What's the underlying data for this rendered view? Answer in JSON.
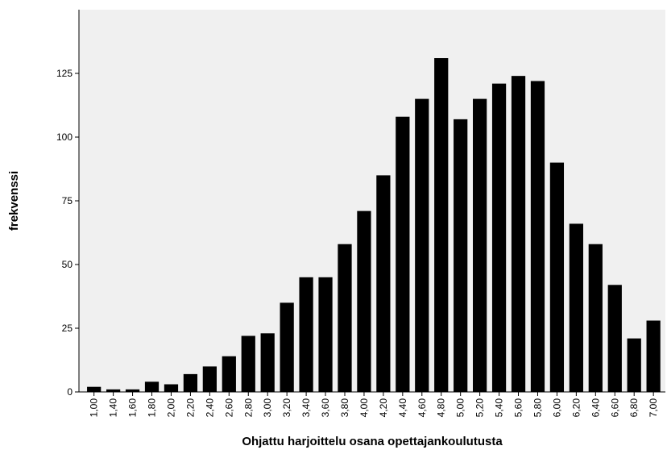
{
  "chart_data": {
    "type": "bar",
    "xlabel": "Ohjattu harjoittelu osana opettajankoulutusta",
    "ylabel": "frekvenssi",
    "ylim": [
      0,
      150
    ],
    "yticks": [
      0,
      25,
      50,
      75,
      100,
      125
    ],
    "grid": false,
    "background": "#f0f0f0",
    "bar_color": "#000000",
    "categories": [
      "1,00",
      "1,40",
      "1,60",
      "1,80",
      "2,00",
      "2,20",
      "2,40",
      "2,60",
      "2,80",
      "3,00",
      "3,20",
      "3,40",
      "3,60",
      "3,80",
      "4,00",
      "4,20",
      "4,40",
      "4,60",
      "4,80",
      "5,00",
      "5,20",
      "5,40",
      "5,60",
      "5,80",
      "6,00",
      "6,20",
      "6,40",
      "6,60",
      "6,80",
      "7,00"
    ],
    "values": [
      2,
      1,
      1,
      4,
      3,
      7,
      10,
      14,
      22,
      23,
      35,
      45,
      45,
      58,
      71,
      85,
      108,
      115,
      131,
      107,
      115,
      121,
      124,
      122,
      90,
      66,
      58,
      42,
      21,
      28
    ]
  }
}
